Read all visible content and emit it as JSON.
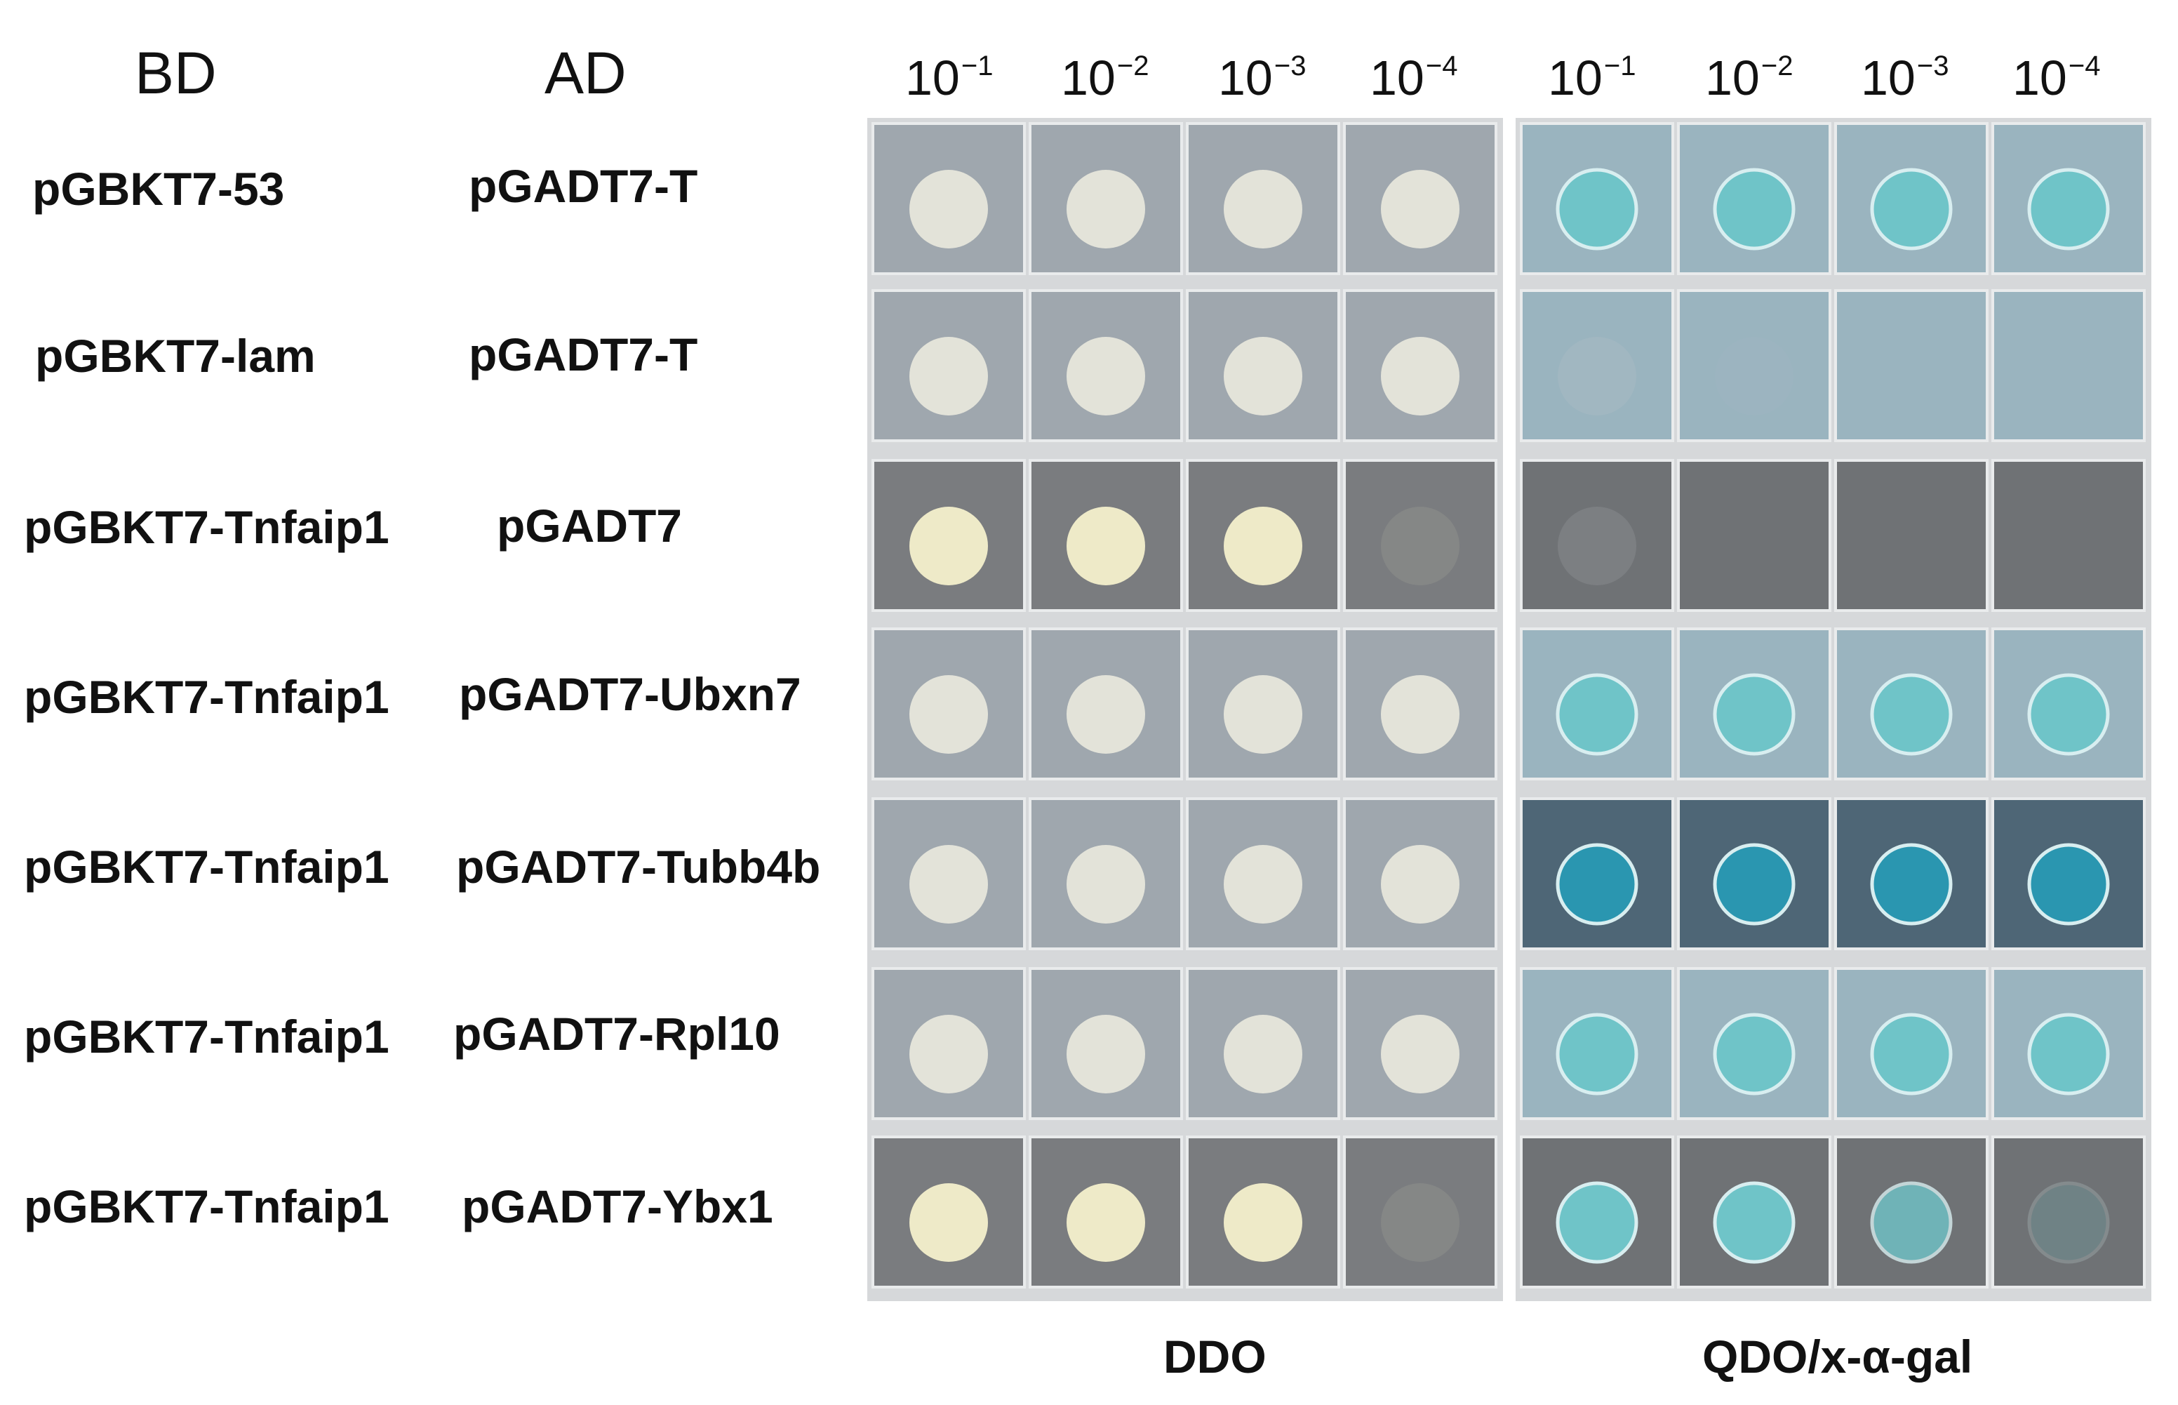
{
  "headers": {
    "bd": "BD",
    "ad": "AD"
  },
  "dilutions": [
    {
      "base": "10",
      "exp": "−1"
    },
    {
      "base": "10",
      "exp": "−2"
    },
    {
      "base": "10",
      "exp": "−3"
    },
    {
      "base": "10",
      "exp": "−4"
    }
  ],
  "media": {
    "left": "DDO",
    "right": "QDO/x-α-gal"
  },
  "colors": {
    "ddo_plate_light": "#9fa7ae",
    "ddo_plate_dark": "#7a7c7f",
    "colony_cream": "#e3e3d9",
    "colony_yellow": "#eeeac8",
    "qdo_plate_light": "#9ab4bf",
    "qdo_plate_dark": "#6f7275",
    "qdo_plate_deep": "#4e6676",
    "colony_blue": "#6fc4c8",
    "colony_deep_blue": "#2a96b0"
  },
  "rows": [
    {
      "bd": "pGBKT7-53",
      "ad": "pGADT7-T",
      "ddo_bg": "light",
      "qdo_bg": "light",
      "ddo": [
        1,
        1,
        1,
        1
      ],
      "qdo": [
        1,
        1,
        1,
        1
      ],
      "qdo_color": "blue"
    },
    {
      "bd": "pGBKT7-lam",
      "ad": "pGADT7-T",
      "ddo_bg": "light",
      "qdo_bg": "light",
      "ddo": [
        1,
        1,
        1,
        1
      ],
      "qdo": [
        0.15,
        0.05,
        0,
        0
      ],
      "qdo_color": "none"
    },
    {
      "bd": "pGBKT7-Tnfaip1",
      "ad": "pGADT7",
      "ddo_bg": "dark",
      "qdo_bg": "dark",
      "ddo": [
        1,
        1,
        1,
        0.1
      ],
      "qdo": [
        0.15,
        0,
        0,
        0
      ],
      "qdo_color": "none"
    },
    {
      "bd": "pGBKT7-Tnfaip1",
      "ad": "pGADT7-Ubxn7",
      "ddo_bg": "light",
      "qdo_bg": "light",
      "ddo": [
        1,
        1,
        1,
        1
      ],
      "qdo": [
        1,
        1,
        1,
        1
      ],
      "qdo_color": "blue"
    },
    {
      "bd": "pGBKT7-Tnfaip1",
      "ad": "pGADT7-Tubb4b",
      "ddo_bg": "light",
      "qdo_bg": "deep",
      "ddo": [
        1,
        1,
        1,
        1
      ],
      "qdo": [
        1,
        1,
        1,
        1
      ],
      "qdo_color": "deep"
    },
    {
      "bd": "pGBKT7-Tnfaip1",
      "ad": "pGADT7-Rpl10",
      "ddo_bg": "light",
      "qdo_bg": "light",
      "ddo": [
        1,
        1,
        1,
        1
      ],
      "qdo": [
        1,
        1,
        1,
        1
      ],
      "qdo_color": "blue"
    },
    {
      "bd": "pGBKT7-Tnfaip1",
      "ad": "pGADT7-Ybx1",
      "ddo_bg": "dark",
      "qdo_bg": "dark",
      "ddo": [
        1,
        1,
        1,
        0.1
      ],
      "qdo": [
        1,
        1,
        0.8,
        0.2
      ],
      "qdo_color": "blue"
    }
  ]
}
